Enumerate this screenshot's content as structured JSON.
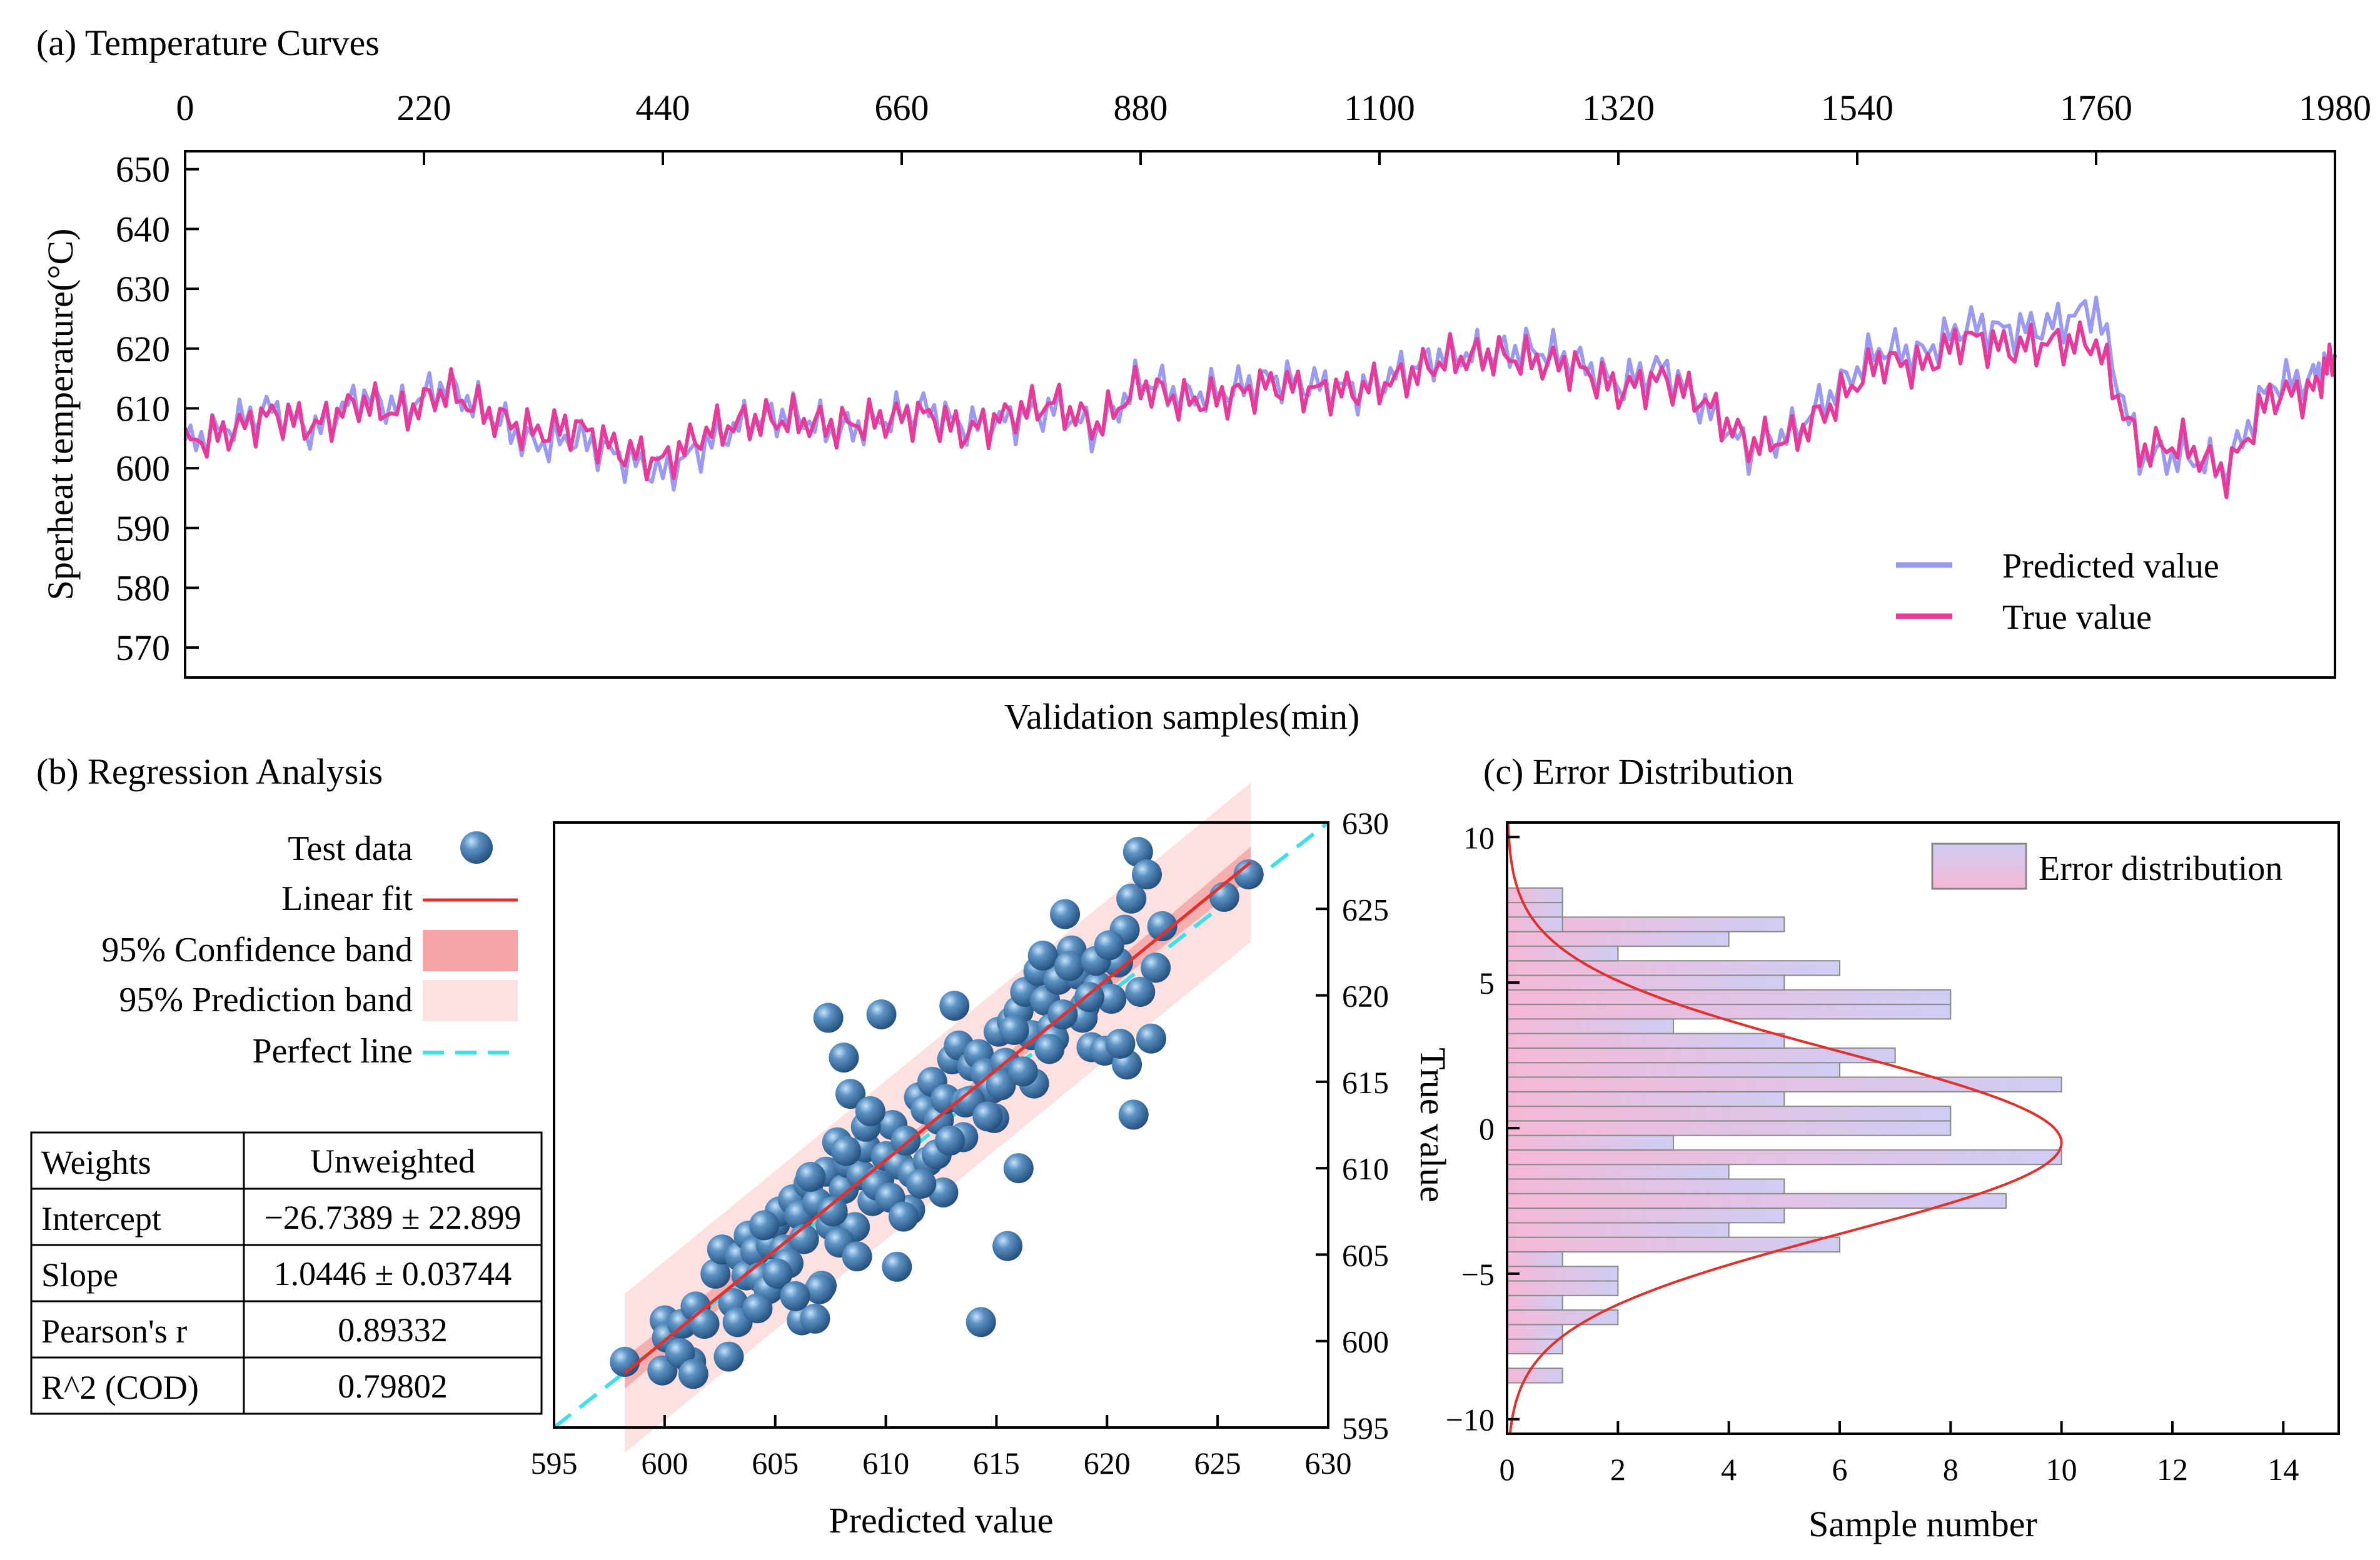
{
  "panels": {
    "a": {
      "title": "(a) Temperature Curves"
    },
    "b": {
      "title": "(b) Regression Analysis"
    },
    "c": {
      "title": "(c) Error Distribution"
    }
  },
  "colors": {
    "predicted": "#9a9af2",
    "true": "#e83a9a",
    "fit": "#e4302c",
    "confidence": "#f4a4a4",
    "prediction": "#fde1e1",
    "perfect": "#3ee0e6",
    "dot": "#3a6fa0",
    "hist_top": "#f5b8d6",
    "hist_bottom": "#cfcdf3"
  },
  "regression_table": {
    "rows": [
      {
        "label": "Weights",
        "value": "Unweighted"
      },
      {
        "label": "Intercept",
        "value": "−26.7389 ± 22.899"
      },
      {
        "label": "Slope",
        "value": "1.0446 ± 0.03744"
      },
      {
        "label": "Pearson's r",
        "value": "0.89332"
      },
      {
        "label": "R^2 (COD)",
        "value": "0.79802"
      }
    ]
  },
  "chart_data": [
    {
      "id": "a",
      "type": "line",
      "title": "(a) Temperature Curves",
      "xlabel": "Validation samples(min)",
      "ylabel": "Sperheat temperature(°C)",
      "xlim": [
        0,
        1980
      ],
      "ylim": [
        565,
        653
      ],
      "xticks": [
        0,
        220,
        440,
        660,
        880,
        1100,
        1320,
        1540,
        1760,
        1980
      ],
      "yticks": [
        570,
        580,
        590,
        600,
        610,
        620,
        630,
        640,
        650
      ],
      "x_axis_position": "top",
      "legend": {
        "position": "bottom-right",
        "entries": [
          "Predicted value",
          "True value"
        ]
      },
      "series": [
        {
          "name": "Predicted value",
          "x": [
            0,
            40,
            80,
            120,
            160,
            200,
            240,
            280,
            320,
            360,
            400,
            440,
            480,
            520,
            560,
            600,
            640,
            680,
            720,
            760,
            800,
            840,
            880,
            920,
            960,
            1000,
            1040,
            1080,
            1120,
            1160,
            1200,
            1240,
            1280,
            1320,
            1360,
            1400,
            1440,
            1480,
            1520,
            1560,
            1600,
            1640,
            1680,
            1720,
            1760,
            1800,
            1840,
            1880,
            1920,
            1960,
            1980
          ],
          "values": [
            604,
            607,
            610,
            606,
            612,
            610,
            614,
            609,
            604,
            605,
            602,
            599,
            604,
            608,
            609,
            606,
            608,
            610,
            607,
            608,
            610,
            606,
            615,
            612,
            613,
            615,
            614,
            613,
            616,
            619,
            619,
            620,
            618,
            614,
            617,
            610,
            603,
            606,
            613,
            620,
            619,
            624,
            623,
            624,
            627,
            602,
            602,
            600,
            614,
            615,
            619
          ]
        },
        {
          "name": "True value",
          "x": [
            0,
            40,
            80,
            120,
            160,
            200,
            240,
            280,
            320,
            360,
            400,
            440,
            480,
            520,
            560,
            600,
            640,
            680,
            720,
            760,
            800,
            840,
            880,
            920,
            960,
            1000,
            1040,
            1080,
            1120,
            1160,
            1200,
            1240,
            1280,
            1320,
            1360,
            1400,
            1440,
            1480,
            1520,
            1560,
            1600,
            1640,
            1680,
            1720,
            1760,
            1800,
            1840,
            1880,
            1920,
            1960,
            1980
          ],
          "values": [
            604,
            606,
            609,
            607,
            611,
            609,
            613,
            609,
            606,
            607,
            603,
            601,
            606,
            608,
            608,
            607,
            608,
            609,
            606,
            609,
            611,
            607,
            614,
            611,
            612,
            614,
            613,
            613,
            615,
            618,
            619,
            618,
            617,
            613,
            615,
            611,
            604,
            605,
            611,
            618,
            617,
            622,
            620,
            621,
            621,
            603,
            604,
            599,
            612,
            613,
            619
          ]
        }
      ]
    },
    {
      "id": "b",
      "type": "scatter",
      "title": "(b) Regression Analysis",
      "xlabel": "Predicted value",
      "ylabel": "True value",
      "xlim": [
        595,
        630
      ],
      "ylim": [
        595,
        630
      ],
      "xticks": [
        595,
        600,
        605,
        610,
        615,
        620,
        625,
        630
      ],
      "yticks": [
        595,
        600,
        605,
        610,
        615,
        620,
        625,
        630
      ],
      "legend": {
        "position": "left",
        "entries": [
          "Test data",
          "Linear fit",
          "95% Confidence band",
          "95% Prediction band",
          "Perfect line"
        ]
      },
      "fit": {
        "slope": 1.0446,
        "intercept": -26.7389,
        "x_range": [
          598.2,
          626.5
        ],
        "prediction_half_width": 4.6,
        "confidence_half_width_ends": 0.9,
        "confidence_half_width_center": 0.3
      },
      "points": {
        "x": [
          598.2,
          600.0,
          600.1,
          600.8,
          601.2,
          601.4,
          602.3,
          602.6,
          603.4,
          603.7,
          603.8,
          604.1,
          604.3,
          604.8,
          605.0,
          605.2,
          605.4,
          605.8,
          606.1,
          606.3,
          606.5,
          606.9,
          607.1,
          607.3,
          607.5,
          607.8,
          608.1,
          608.3,
          608.6,
          608.9,
          609.1,
          609.4,
          609.7,
          610.0,
          610.3,
          610.6,
          610.9,
          611.2,
          611.5,
          611.8,
          612.1,
          612.4,
          612.7,
          613.0,
          613.3,
          613.6,
          613.9,
          614.2,
          614.5,
          614.8,
          615.1,
          615.4,
          615.7,
          616.0,
          616.3,
          616.6,
          616.9,
          617.2,
          617.5,
          617.8,
          618.1,
          618.4,
          618.7,
          619.0,
          619.3,
          619.6,
          619.9,
          620.2,
          620.5,
          620.8,
          621.1,
          621.4,
          621.8,
          622.2,
          622.5,
          625.3,
          626.4,
          607.4,
          609.8,
          608.1,
          613.1,
          614.3,
          615.5,
          616.0,
          606.2,
          607.0,
          608.4,
          609.1,
          609.3,
          610.5,
          611.1,
          611.9,
          612.6,
          613.5,
          614.9,
          615.8,
          616.7,
          617.1,
          617.6,
          618.3,
          618.9,
          619.5,
          620.1,
          620.9,
          621.5,
          622.0,
          604.5,
          605.6,
          606.6,
          607.6,
          608.2,
          609.6,
          603.1,
          601.8,
          602.9,
          604.7,
          605.1,
          605.9,
          606.8,
          607.9,
          608.7,
          610.2,
          610.8,
          611.6,
          612.3,
          612.9,
          613.8,
          614.6,
          615.2,
          616.2,
          617.4,
          618.0,
          619.2,
          620.6,
          621.2,
          599.9,
          600.7,
          601.3,
          603.3,
          604.2
        ],
        "y": [
          598.8,
          601.2,
          600.2,
          601.0,
          598.8,
          602.0,
          603.9,
          605.3,
          604.9,
          603.8,
          606.1,
          605.2,
          603.7,
          605.6,
          606.8,
          607.5,
          605.3,
          608.2,
          607.3,
          605.9,
          609.1,
          608.0,
          603.2,
          609.8,
          606.7,
          611.5,
          608.8,
          610.3,
          606.6,
          609.6,
          611.2,
          608.1,
          609.3,
          610.7,
          612.5,
          610.2,
          611.6,
          609.7,
          614.1,
          613.4,
          615.0,
          612.8,
          614.0,
          616.3,
          617.1,
          613.8,
          615.9,
          616.6,
          615.5,
          614.6,
          617.9,
          616.1,
          618.5,
          619.1,
          620.2,
          617.7,
          621.4,
          619.7,
          618.1,
          620.9,
          624.7,
          622.6,
          621.2,
          619.4,
          617.0,
          620.5,
          616.8,
          619.8,
          621.9,
          623.8,
          625.6,
          628.3,
          627.0,
          621.6,
          624.0,
          625.7,
          627.0,
          618.7,
          618.9,
          616.4,
          619.4,
          601.1,
          605.5,
          610.0,
          601.2,
          603.0,
          614.3,
          612.4,
          613.3,
          604.3,
          607.6,
          610.4,
          608.6,
          611.8,
          612.9,
          618.0,
          614.9,
          622.3,
          617.5,
          621.7,
          618.7,
          622.0,
          622.9,
          616.0,
          620.2,
          617.5,
          606.7,
          604.5,
          609.5,
          607.5,
          611.0,
          609.0,
          602.2,
          601.0,
          599.1,
          603.0,
          603.9,
          602.6,
          601.3,
          605.7,
          604.9,
          608.3,
          607.2,
          609.1,
          610.8,
          611.6,
          613.9,
          613.0,
          614.8,
          615.6,
          616.9,
          618.9,
          619.9,
          617.2,
          613.1,
          598.3,
          599.3,
          598.1,
          601.1,
          601.9
        ]
      }
    },
    {
      "id": "c",
      "type": "bar",
      "orientation": "horizontal",
      "title": "(c) Error Distribution",
      "xlabel": "Sample number",
      "ylabel": "",
      "xlim": [
        0,
        15
      ],
      "ylim": [
        -10.5,
        10.5
      ],
      "xticks": [
        0,
        2,
        4,
        6,
        8,
        10,
        12,
        14
      ],
      "yticks": [
        -10,
        -5,
        0,
        5,
        10
      ],
      "ytick_labels": [
        "−10",
        "−5",
        "0",
        "5",
        "10"
      ],
      "legend": {
        "position": "top-right",
        "entries": [
          "Error distribution"
        ]
      },
      "bin_width": 0.5,
      "bins": [
        -8.5,
        -8.0,
        -7.5,
        -7.0,
        -6.5,
        -6.0,
        -5.5,
        -5.0,
        -4.5,
        -4.0,
        -3.5,
        -3.0,
        -2.5,
        -2.0,
        -1.5,
        -1.0,
        -0.5,
        0.0,
        0.5,
        1.0,
        1.5,
        2.0,
        2.5,
        3.0,
        3.5,
        4.0,
        4.5,
        5.0,
        5.5,
        6.0,
        6.5,
        7.0,
        7.5,
        8.0,
        8.5
      ],
      "values": [
        1,
        0,
        1,
        1,
        2,
        1,
        2,
        2,
        1,
        6,
        4,
        5,
        9,
        5,
        4,
        10,
        3,
        8,
        8,
        5,
        10,
        6,
        7,
        5,
        3,
        8,
        8,
        5,
        6,
        2,
        4,
        5,
        1,
        1,
        0
      ],
      "extra_bins": [
        {
          "bin": 6.0,
          "value": 2
        },
        {
          "bin": 7.0,
          "value": 1
        }
      ],
      "normal_fit": {
        "mean": -0.5,
        "sd": 3.1,
        "peak": 10
      }
    }
  ]
}
